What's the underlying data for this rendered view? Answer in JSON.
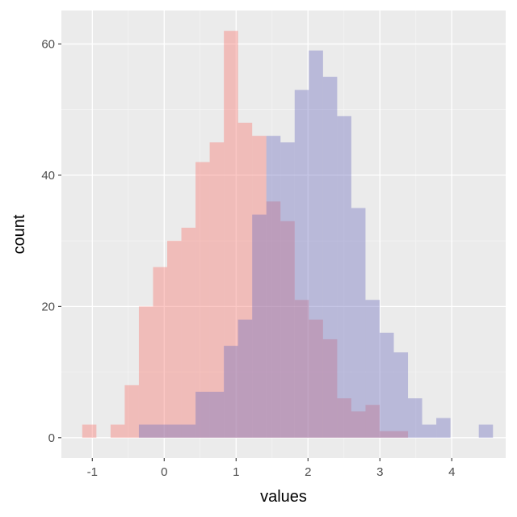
{
  "chart_data": {
    "type": "histogram",
    "xlabel": "values",
    "ylabel": "count",
    "xlim": [
      -1.43,
      4.75
    ],
    "ylim": [
      -3.1,
      65.1
    ],
    "x_ticks": [
      -1,
      0,
      1,
      2,
      3,
      4
    ],
    "x_tick_labels": [
      "-1",
      "0",
      "1",
      "2",
      "3",
      "4"
    ],
    "y_ticks": [
      0,
      20,
      40,
      60
    ],
    "y_tick_labels": [
      "0",
      "20",
      "40",
      "60"
    ],
    "grid": true,
    "legend": "none",
    "bin_width": 0.197,
    "series": [
      {
        "color": "#F8766D",
        "opacity": 0.4,
        "bins": [
          {
            "x0": -1.14,
            "x1": -0.943,
            "count": 2
          },
          {
            "x0": -0.746,
            "x1": -0.549,
            "count": 2
          },
          {
            "x0": -0.549,
            "x1": -0.352,
            "count": 8
          },
          {
            "x0": -0.352,
            "x1": -0.155,
            "count": 20
          },
          {
            "x0": -0.155,
            "x1": 0.042,
            "count": 26
          },
          {
            "x0": 0.042,
            "x1": 0.239,
            "count": 30
          },
          {
            "x0": 0.239,
            "x1": 0.436,
            "count": 32
          },
          {
            "x0": 0.436,
            "x1": 0.633,
            "count": 42
          },
          {
            "x0": 0.633,
            "x1": 0.83,
            "count": 45
          },
          {
            "x0": 0.83,
            "x1": 1.027,
            "count": 62
          },
          {
            "x0": 1.027,
            "x1": 1.224,
            "count": 48
          },
          {
            "x0": 1.224,
            "x1": 1.421,
            "count": 46
          },
          {
            "x0": 1.421,
            "x1": 1.618,
            "count": 36
          },
          {
            "x0": 1.618,
            "x1": 1.815,
            "count": 33
          },
          {
            "x0": 1.815,
            "x1": 2.012,
            "count": 21
          },
          {
            "x0": 2.012,
            "x1": 2.209,
            "count": 18
          },
          {
            "x0": 2.209,
            "x1": 2.406,
            "count": 15
          },
          {
            "x0": 2.406,
            "x1": 2.603,
            "count": 6
          },
          {
            "x0": 2.603,
            "x1": 2.8,
            "count": 4
          },
          {
            "x0": 2.8,
            "x1": 2.997,
            "count": 5
          },
          {
            "x0": 2.997,
            "x1": 3.194,
            "count": 1
          },
          {
            "x0": 3.194,
            "x1": 3.391,
            "count": 1
          }
        ]
      },
      {
        "color": "#6F6FBF",
        "opacity": 0.4,
        "bins": [
          {
            "x0": -0.352,
            "x1": -0.155,
            "count": 2
          },
          {
            "x0": -0.155,
            "x1": 0.042,
            "count": 2
          },
          {
            "x0": 0.042,
            "x1": 0.239,
            "count": 2
          },
          {
            "x0": 0.239,
            "x1": 0.436,
            "count": 2
          },
          {
            "x0": 0.436,
            "x1": 0.633,
            "count": 7
          },
          {
            "x0": 0.633,
            "x1": 0.83,
            "count": 7
          },
          {
            "x0": 0.83,
            "x1": 1.027,
            "count": 14
          },
          {
            "x0": 1.027,
            "x1": 1.224,
            "count": 18
          },
          {
            "x0": 1.224,
            "x1": 1.421,
            "count": 34
          },
          {
            "x0": 1.421,
            "x1": 1.618,
            "count": 46
          },
          {
            "x0": 1.618,
            "x1": 1.815,
            "count": 45
          },
          {
            "x0": 1.815,
            "x1": 2.012,
            "count": 53
          },
          {
            "x0": 2.012,
            "x1": 2.209,
            "count": 59
          },
          {
            "x0": 2.209,
            "x1": 2.406,
            "count": 55
          },
          {
            "x0": 2.406,
            "x1": 2.603,
            "count": 49
          },
          {
            "x0": 2.603,
            "x1": 2.8,
            "count": 35
          },
          {
            "x0": 2.8,
            "x1": 2.997,
            "count": 21
          },
          {
            "x0": 2.997,
            "x1": 3.194,
            "count": 16
          },
          {
            "x0": 3.194,
            "x1": 3.391,
            "count": 13
          },
          {
            "x0": 3.391,
            "x1": 3.588,
            "count": 6
          },
          {
            "x0": 3.588,
            "x1": 3.785,
            "count": 2
          },
          {
            "x0": 3.785,
            "x1": 3.982,
            "count": 3
          },
          {
            "x0": 4.376,
            "x1": 4.573,
            "count": 2
          }
        ]
      }
    ]
  }
}
